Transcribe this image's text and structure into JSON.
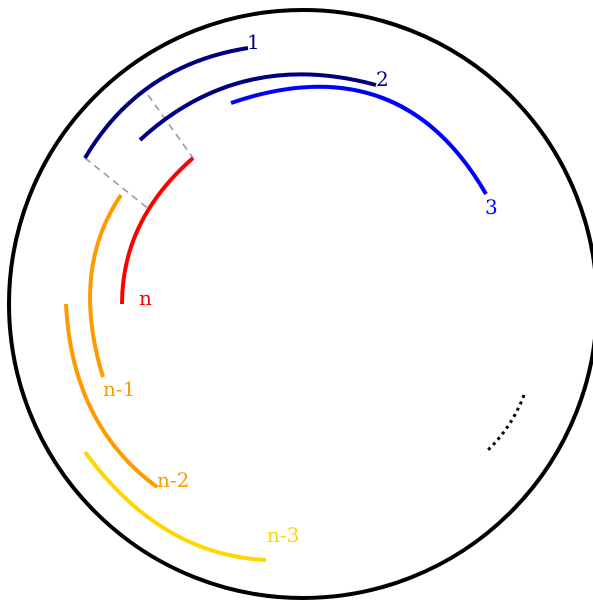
{
  "colors": {
    "outer": "#000000",
    "dark_navy": "#00007f",
    "blue": "#0000ff",
    "red": "#ff0000",
    "orange": "#ff9900",
    "gold": "#ffd700",
    "guide": "#999999",
    "dots": "#000000"
  },
  "arcs": [
    {
      "label": "1",
      "color": "dark_navy"
    },
    {
      "label": "2",
      "color": "dark_navy"
    },
    {
      "label": "3",
      "color": "blue"
    },
    {
      "label": "n",
      "color": "red"
    },
    {
      "label": "n-1",
      "color": "orange"
    },
    {
      "label": "n-2",
      "color": "orange"
    },
    {
      "label": "n-3",
      "color": "gold"
    }
  ]
}
